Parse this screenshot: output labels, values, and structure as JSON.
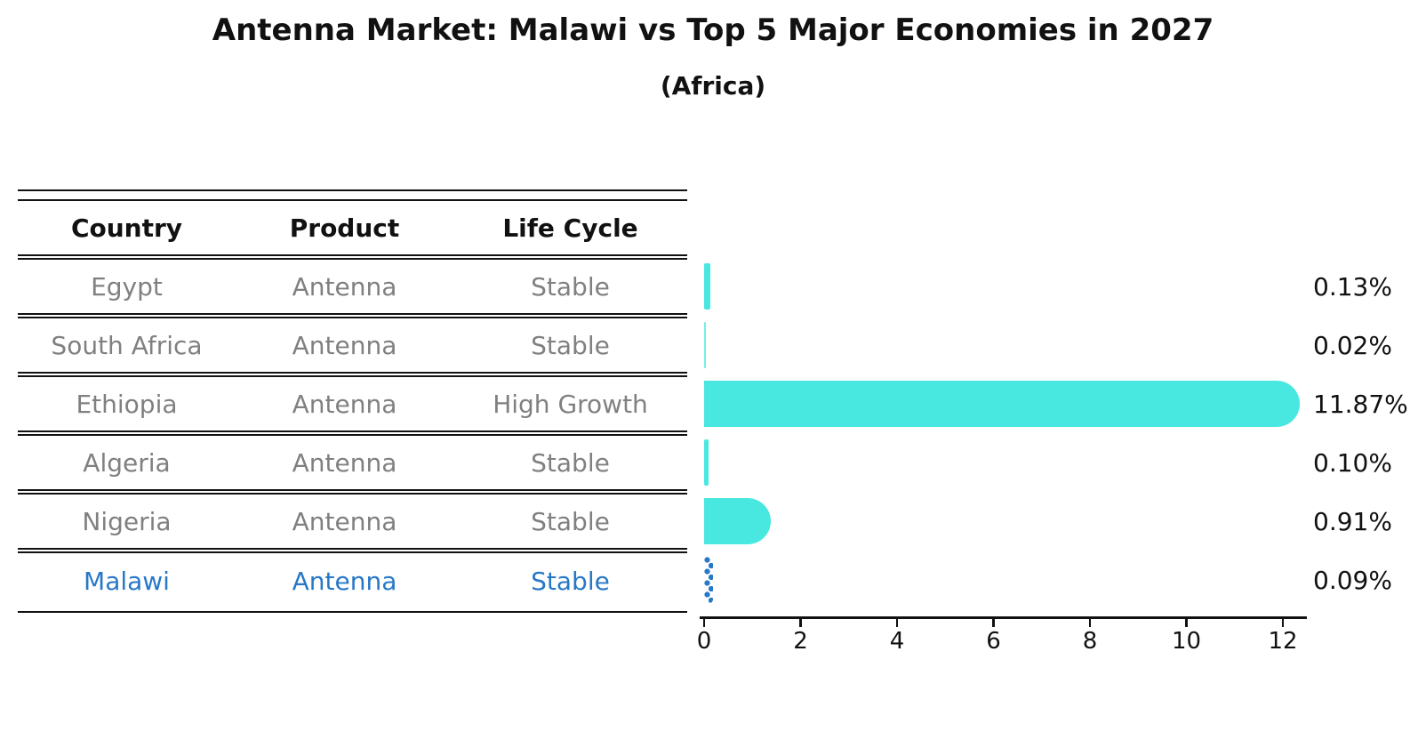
{
  "chart_data": {
    "type": "bar",
    "title": "Antenna Market: Malawi vs Top 5 Major Economies in 2027",
    "subtitle": "(Africa)",
    "table_headers": [
      "Country",
      "Product",
      "Life Cycle"
    ],
    "categories": [
      "Egypt",
      "South Africa",
      "Ethiopia",
      "Algeria",
      "Nigeria",
      "Malawi"
    ],
    "values": [
      0.13,
      0.02,
      11.87,
      0.1,
      0.91,
      0.09
    ],
    "rows": [
      {
        "country": "Egypt",
        "product": "Antenna",
        "life_cycle": "Stable",
        "value": 0.13,
        "label": "0.13%",
        "highlight": false
      },
      {
        "country": "South Africa",
        "product": "Antenna",
        "life_cycle": "Stable",
        "value": 0.02,
        "label": "0.02%",
        "highlight": false
      },
      {
        "country": "Ethiopia",
        "product": "Antenna",
        "life_cycle": "High Growth",
        "value": 11.87,
        "label": "11.87%",
        "highlight": false
      },
      {
        "country": "Algeria",
        "product": "Antenna",
        "life_cycle": "Stable",
        "value": 0.1,
        "label": "0.10%",
        "highlight": false
      },
      {
        "country": "Nigeria",
        "product": "Antenna",
        "life_cycle": "Stable",
        "value": 0.91,
        "label": "0.91%",
        "highlight": false
      },
      {
        "country": "Malawi",
        "product": "Antenna",
        "life_cycle": "Stable",
        "value": 0.09,
        "label": "0.09%",
        "highlight": true
      }
    ],
    "xticks": [
      0,
      2,
      4,
      6,
      8,
      10,
      12
    ],
    "xlim": [
      0,
      12.55
    ],
    "legend": "none",
    "grid": false,
    "colors": {
      "bar": "#48e8e0",
      "highlight": "#2878c8",
      "row_text": "#808080",
      "header_text": "#111111",
      "axis": "#111111"
    }
  }
}
